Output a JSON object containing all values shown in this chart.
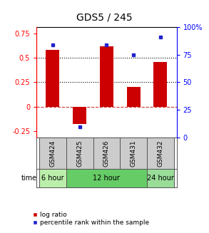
{
  "title": "GDS5 / 245",
  "samples": [
    "GSM424",
    "GSM425",
    "GSM426",
    "GSM431",
    "GSM432"
  ],
  "log_ratio": [
    0.58,
    -0.18,
    0.62,
    0.2,
    0.46
  ],
  "percentile_rank": [
    84,
    10,
    84,
    75,
    91
  ],
  "bar_color": "#cc0000",
  "dot_color": "#2222cc",
  "ylim_left": [
    -0.32,
    0.82
  ],
  "ylim_right": [
    0,
    100
  ],
  "yticks_left": [
    -0.25,
    0,
    0.25,
    0.5,
    0.75
  ],
  "ytick_labels_left": [
    "-0.25",
    "0",
    "0.25",
    "0.5",
    "0.75"
  ],
  "yticks_right": [
    0,
    25,
    50,
    75,
    100
  ],
  "ytick_labels_right": [
    "0",
    "25",
    "50",
    "75",
    "100%"
  ],
  "dotted_lines": [
    0.25,
    0.5
  ],
  "zero_dashed": true,
  "time_groups": [
    {
      "label": "6 hour",
      "cols": [
        0,
        0
      ],
      "color": "#bbeeaa"
    },
    {
      "label": "12 hour",
      "cols": [
        1,
        3
      ],
      "color": "#66cc66"
    },
    {
      "label": "24 hour",
      "cols": [
        4,
        4
      ],
      "color": "#99dd99"
    }
  ],
  "legend_bar_label": "log ratio",
  "legend_dot_label": "percentile rank within the sample",
  "bar_width": 0.5,
  "bg_color": "white"
}
